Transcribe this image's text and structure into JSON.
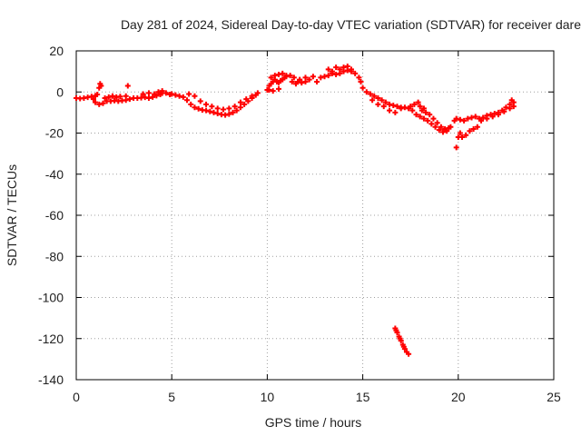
{
  "chart_data": {
    "type": "scatter",
    "title": "Day 281 of 2024, Sidereal Day-to-day VTEC variation (SDTVAR) for receiver dare",
    "xlabel": "GPS time / hours",
    "ylabel": "SDTVAR / TECUs",
    "xlim": [
      0,
      25
    ],
    "ylim": [
      -140,
      20
    ],
    "xticks": [
      0,
      5,
      10,
      15,
      20,
      25
    ],
    "yticks": [
      20,
      0,
      -20,
      -40,
      -60,
      -80,
      -100,
      -120,
      -140
    ],
    "grid": true,
    "marker": "+",
    "series": [
      {
        "name": "SDTVAR",
        "color": "#ff0000",
        "points": [
          [
            0.0,
            -3
          ],
          [
            0.2,
            -3.2
          ],
          [
            0.4,
            -3
          ],
          [
            0.6,
            -2.6
          ],
          [
            0.8,
            -2.2
          ],
          [
            1.0,
            -1.8
          ],
          [
            1.1,
            -1.2
          ],
          [
            1.2,
            2
          ],
          [
            1.25,
            4
          ],
          [
            1.3,
            3
          ],
          [
            0.9,
            -3.5
          ],
          [
            1.0,
            -5
          ],
          [
            1.2,
            -6
          ],
          [
            1.4,
            -5.5
          ],
          [
            1.6,
            -4.5
          ],
          [
            1.8,
            -4.5
          ],
          [
            2.0,
            -4.2
          ],
          [
            2.2,
            -4.5
          ],
          [
            2.4,
            -4.2
          ],
          [
            2.6,
            -4
          ],
          [
            1.5,
            -3
          ],
          [
            1.7,
            -2.5
          ],
          [
            1.9,
            -2
          ],
          [
            2.1,
            -2.5
          ],
          [
            2.3,
            -2.2
          ],
          [
            2.6,
            -2
          ],
          [
            2.7,
            3
          ],
          [
            2.8,
            -3.5
          ],
          [
            3.0,
            -3
          ],
          [
            3.2,
            -3
          ],
          [
            3.4,
            -2.8
          ],
          [
            3.6,
            -2.6
          ],
          [
            3.8,
            -3
          ],
          [
            4.0,
            -2.5
          ],
          [
            4.2,
            -1.8
          ],
          [
            4.4,
            -1.2
          ],
          [
            4.5,
            -0.6
          ],
          [
            3.5,
            -1
          ],
          [
            3.8,
            -0.5
          ],
          [
            4.1,
            -1
          ],
          [
            4.3,
            0
          ],
          [
            4.5,
            0.5
          ],
          [
            4.7,
            -0.5
          ],
          [
            4.9,
            -1.2
          ],
          [
            5.0,
            -1
          ],
          [
            5.2,
            -1.5
          ],
          [
            5.4,
            -2
          ],
          [
            5.6,
            -2.5
          ],
          [
            5.8,
            -4
          ],
          [
            6.0,
            -6
          ],
          [
            6.2,
            -7.5
          ],
          [
            6.4,
            -8.2
          ],
          [
            6.6,
            -8.8
          ],
          [
            6.8,
            -9
          ],
          [
            7.0,
            -9.5
          ],
          [
            7.2,
            -10
          ],
          [
            7.4,
            -10.5
          ],
          [
            7.6,
            -11
          ],
          [
            7.8,
            -11.2
          ],
          [
            8.0,
            -10.8
          ],
          [
            8.2,
            -10
          ],
          [
            8.4,
            -9
          ],
          [
            8.6,
            -7.5
          ],
          [
            8.8,
            -6
          ],
          [
            9.0,
            -4.5
          ],
          [
            9.2,
            -3
          ],
          [
            9.4,
            -1.5
          ],
          [
            9.5,
            -0.5
          ],
          [
            5.9,
            -1
          ],
          [
            6.2,
            -2
          ],
          [
            6.5,
            -4.5
          ],
          [
            6.8,
            -6
          ],
          [
            7.1,
            -7
          ],
          [
            7.4,
            -8
          ],
          [
            7.7,
            -8.5
          ],
          [
            8.0,
            -8
          ],
          [
            8.3,
            -7
          ],
          [
            8.6,
            -5
          ],
          [
            8.9,
            -3.5
          ],
          [
            9.2,
            -2
          ],
          [
            10.0,
            1
          ],
          [
            10.1,
            3
          ],
          [
            10.2,
            4
          ],
          [
            10.3,
            5
          ],
          [
            10.4,
            6
          ],
          [
            10.5,
            5
          ],
          [
            10.6,
            4.5
          ],
          [
            10.7,
            5.5
          ],
          [
            10.8,
            6
          ],
          [
            10.9,
            7
          ],
          [
            11.0,
            8
          ],
          [
            10.2,
            7
          ],
          [
            10.4,
            8
          ],
          [
            10.6,
            8.5
          ],
          [
            10.8,
            9
          ],
          [
            11.0,
            7.5
          ],
          [
            11.2,
            8
          ],
          [
            11.4,
            7
          ],
          [
            11.6,
            5
          ],
          [
            11.8,
            4.5
          ],
          [
            12.0,
            5
          ],
          [
            10.1,
            1
          ],
          [
            10.3,
            0.5
          ],
          [
            10.6,
            1.5
          ],
          [
            11.3,
            5
          ],
          [
            11.5,
            4
          ],
          [
            11.7,
            6
          ],
          [
            12.0,
            7
          ],
          [
            12.2,
            6
          ],
          [
            12.4,
            7.5
          ],
          [
            12.6,
            5
          ],
          [
            12.8,
            7
          ],
          [
            13.0,
            7.5
          ],
          [
            13.2,
            8
          ],
          [
            13.4,
            9
          ],
          [
            13.6,
            8.5
          ],
          [
            13.8,
            9
          ],
          [
            14.0,
            10
          ],
          [
            14.2,
            10.5
          ],
          [
            14.4,
            11
          ],
          [
            14.6,
            9
          ],
          [
            14.8,
            7
          ],
          [
            13.4,
            10
          ],
          [
            13.6,
            12
          ],
          [
            13.8,
            11
          ],
          [
            14.0,
            12
          ],
          [
            14.2,
            12.5
          ],
          [
            14.4,
            10
          ],
          [
            13.2,
            11
          ],
          [
            14.9,
            5
          ],
          [
            15.0,
            2
          ],
          [
            15.2,
            0
          ],
          [
            15.4,
            -1
          ],
          [
            15.6,
            -2
          ],
          [
            15.8,
            -3
          ],
          [
            16.0,
            -4
          ],
          [
            16.2,
            -5
          ],
          [
            16.4,
            -6
          ],
          [
            16.6,
            -6.5
          ],
          [
            16.8,
            -7
          ],
          [
            17.0,
            -7.5
          ],
          [
            17.2,
            -7.5
          ],
          [
            17.4,
            -8
          ],
          [
            15.5,
            -4
          ],
          [
            15.8,
            -6
          ],
          [
            16.1,
            -7
          ],
          [
            16.4,
            -9
          ],
          [
            16.7,
            -10
          ],
          [
            17.0,
            -8
          ],
          [
            17.5,
            -7
          ],
          [
            17.7,
            -6
          ],
          [
            17.9,
            -5
          ],
          [
            18.0,
            -7
          ],
          [
            18.1,
            -9
          ],
          [
            18.2,
            -8
          ],
          [
            18.3,
            -10
          ],
          [
            17.6,
            -9
          ],
          [
            17.8,
            -11
          ],
          [
            18.0,
            -12
          ],
          [
            18.2,
            -13
          ],
          [
            18.4,
            -14
          ],
          [
            18.6,
            -15.5
          ],
          [
            18.8,
            -17
          ],
          [
            19.0,
            -18.5
          ],
          [
            19.2,
            -19.5
          ],
          [
            19.4,
            -19
          ],
          [
            19.6,
            -17
          ],
          [
            19.8,
            -14
          ],
          [
            18.5,
            -11
          ],
          [
            18.7,
            -13
          ],
          [
            18.9,
            -15
          ],
          [
            19.1,
            -17
          ],
          [
            19.3,
            -18
          ],
          [
            19.5,
            -17.5
          ],
          [
            19.9,
            -27
          ],
          [
            20.0,
            -22
          ],
          [
            20.1,
            -20
          ],
          [
            20.2,
            -22
          ],
          [
            20.4,
            -21
          ],
          [
            20.6,
            -19
          ],
          [
            20.8,
            -18
          ],
          [
            21.0,
            -17
          ],
          [
            19.9,
            -13
          ],
          [
            20.1,
            -13.5
          ],
          [
            20.3,
            -14
          ],
          [
            20.5,
            -13
          ],
          [
            20.7,
            -12.5
          ],
          [
            20.9,
            -12
          ],
          [
            21.1,
            -13
          ],
          [
            21.3,
            -12.5
          ],
          [
            21.5,
            -11.5
          ],
          [
            21.7,
            -11
          ],
          [
            21.9,
            -10.5
          ],
          [
            22.1,
            -10
          ],
          [
            22.3,
            -9
          ],
          [
            22.5,
            -7.5
          ],
          [
            22.7,
            -6
          ],
          [
            22.8,
            -4
          ],
          [
            22.9,
            -5
          ],
          [
            21.2,
            -14
          ],
          [
            21.5,
            -13
          ],
          [
            21.8,
            -12
          ],
          [
            22.1,
            -11
          ],
          [
            22.4,
            -9.5
          ],
          [
            22.7,
            -8
          ],
          [
            22.9,
            -7
          ],
          [
            16.7,
            -115
          ],
          [
            16.8,
            -117
          ],
          [
            16.9,
            -119
          ],
          [
            17.0,
            -121
          ],
          [
            17.1,
            -123
          ],
          [
            17.2,
            -125
          ],
          [
            17.3,
            -126.5
          ],
          [
            17.4,
            -127.5
          ],
          [
            16.75,
            -116
          ],
          [
            16.95,
            -120
          ],
          [
            17.15,
            -124
          ]
        ]
      }
    ]
  }
}
